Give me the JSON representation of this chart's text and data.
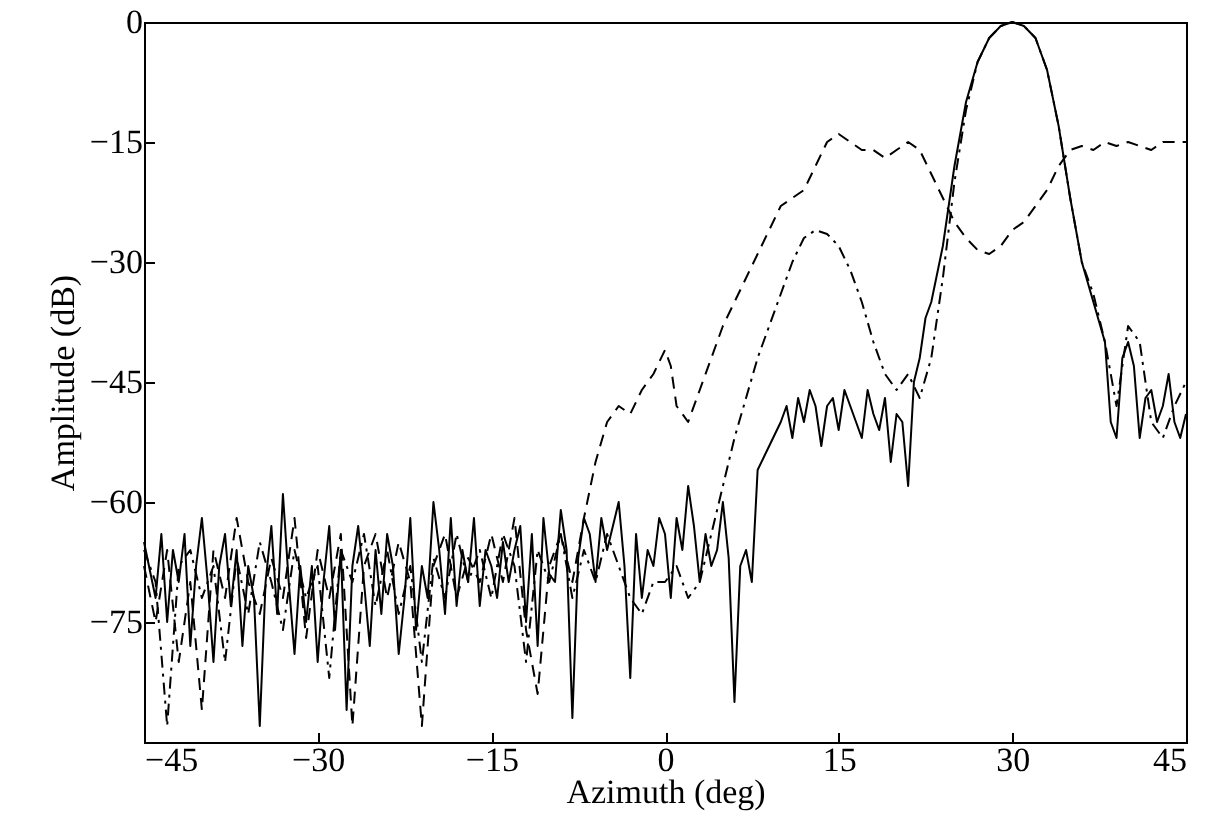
{
  "chart_data": {
    "type": "line",
    "xlabel": "Azimuth (deg)",
    "ylabel": "Amplitude (dB)",
    "xlim": [
      -45,
      45
    ],
    "xticks": [
      -45,
      -30,
      -15,
      0,
      15,
      30,
      45
    ],
    "ylim": [
      -90,
      0
    ],
    "yticks": [
      -75,
      -60,
      -45,
      -30,
      -15,
      0
    ],
    "grid": false,
    "marker": "none",
    "series": [
      {
        "color": "#000000",
        "line_style": "solid",
        "x": [
          -45,
          -44,
          -43.5,
          -43,
          -42.5,
          -42,
          -41.5,
          -41,
          -40.5,
          -40,
          -39.5,
          -39,
          -38.5,
          -38,
          -37.5,
          -37,
          -36.5,
          -36,
          -35.5,
          -35,
          -34.5,
          -34,
          -33.5,
          -33,
          -32.5,
          -32,
          -31.5,
          -31,
          -30.5,
          -30,
          -29.5,
          -29,
          -28.5,
          -28,
          -27.5,
          -27,
          -26.5,
          -26,
          -25.5,
          -25,
          -24.5,
          -24,
          -23.5,
          -23,
          -22.5,
          -22,
          -21.5,
          -21,
          -20.5,
          -20,
          -19.5,
          -19,
          -18.5,
          -18,
          -17.5,
          -17,
          -16.5,
          -16,
          -15.5,
          -15,
          -14.5,
          -14,
          -13.5,
          -13,
          -12.5,
          -12,
          -11.5,
          -11,
          -10.5,
          -10,
          -9.5,
          -9,
          -8.5,
          -8,
          -7.5,
          -7,
          -6.5,
          -6,
          -5.5,
          -5,
          -4,
          -3.5,
          -3,
          -2.5,
          -2,
          -1.5,
          -1,
          -0.5,
          0,
          0.5,
          1,
          1.5,
          2,
          2.5,
          3,
          3.5,
          4,
          4.5,
          5,
          5.5,
          6,
          6.5,
          7,
          7.5,
          8,
          9,
          10,
          10.5,
          11,
          11.5,
          12,
          12.5,
          13,
          13.5,
          14,
          14.5,
          15,
          15.5,
          16,
          17,
          17.5,
          18,
          18.5,
          19,
          19.5,
          20,
          20.5,
          21,
          21.5,
          22,
          22.5,
          23,
          24,
          25,
          26,
          27,
          28,
          29,
          30,
          31,
          32,
          33,
          34,
          35,
          36,
          37,
          38,
          38.5,
          39,
          39.5,
          40,
          40.5,
          41,
          41.5,
          42,
          42.5,
          43,
          43.5,
          44,
          44.5,
          45
        ],
        "values": [
          -65,
          -72,
          -64,
          -75,
          -66,
          -70,
          -64,
          -78,
          -68,
          -62,
          -70,
          -80,
          -68,
          -64,
          -73,
          -66,
          -78,
          -68,
          -72,
          -88,
          -70,
          -63,
          -74,
          -59,
          -70,
          -79,
          -68,
          -75,
          -68,
          -80,
          -70,
          -63,
          -76,
          -66,
          -86,
          -68,
          -63,
          -70,
          -78,
          -66,
          -74,
          -64,
          -68,
          -79,
          -72,
          -62,
          -76,
          -68,
          -72,
          -60,
          -66,
          -74,
          -62,
          -73,
          -66,
          -70,
          -62,
          -73,
          -66,
          -68,
          -72,
          -65,
          -70,
          -66,
          -63,
          -75,
          -64,
          -78,
          -62,
          -69,
          -70,
          -61,
          -66,
          -87,
          -67,
          -62,
          -64,
          -70,
          -62,
          -66,
          -60,
          -68,
          -82,
          -64,
          -72,
          -66,
          -68,
          -62,
          -64,
          -72,
          -62,
          -66,
          -58,
          -63,
          -70,
          -64,
          -68,
          -66,
          -60,
          -67,
          -85,
          -68,
          -66,
          -70,
          -56,
          -53,
          -50,
          -48,
          -52,
          -47,
          -50,
          -46,
          -48,
          -53,
          -48,
          -47,
          -51,
          -46,
          -48,
          -52,
          -46,
          -49,
          -51,
          -47,
          -55,
          -49,
          -50,
          -58,
          -45,
          -42,
          -37,
          -35,
          -28,
          -18,
          -10,
          -5,
          -2,
          -0.5,
          0,
          -0.5,
          -2,
          -6,
          -13,
          -22,
          -30,
          -35,
          -40,
          -50,
          -52,
          -42,
          -40,
          -43,
          -52,
          -47,
          -46,
          -50,
          -48,
          -44,
          -50,
          -52,
          -49
        ]
      },
      {
        "color": "#000000",
        "line_style": "dashed",
        "x": [
          -45,
          -44,
          -43,
          -42,
          -41,
          -40,
          -39,
          -38,
          -37,
          -36,
          -35,
          -34,
          -33,
          -32,
          -31,
          -30,
          -29,
          -28,
          -27,
          -26,
          -25,
          -24,
          -23,
          -22,
          -21,
          -20,
          -19,
          -18,
          -17,
          -16,
          -15,
          -14,
          -13,
          -12,
          -11,
          -10,
          -9,
          -8,
          -7,
          -6,
          -5,
          -4,
          -3,
          -2,
          -1,
          0,
          0.5,
          1,
          2,
          3,
          4,
          5,
          6,
          7,
          8,
          9,
          10,
          11,
          12,
          13,
          14,
          15,
          16,
          17,
          18,
          19,
          20,
          21,
          22,
          23,
          24,
          25,
          26,
          27,
          28,
          29,
          30,
          31,
          32,
          33,
          34,
          35,
          36,
          37,
          38,
          39,
          40,
          41,
          42,
          43,
          44,
          45
        ],
        "values": [
          -68,
          -75,
          -66,
          -80,
          -70,
          -86,
          -66,
          -72,
          -62,
          -70,
          -74,
          -67,
          -72,
          -62,
          -77,
          -66,
          -72,
          -64,
          -88,
          -68,
          -64,
          -72,
          -65,
          -70,
          -88,
          -68,
          -64,
          -72,
          -67,
          -70,
          -64,
          -70,
          -62,
          -76,
          -84,
          -68,
          -64,
          -70,
          -62,
          -55,
          -50,
          -48,
          -49,
          -46,
          -44,
          -41,
          -43,
          -48,
          -50,
          -46,
          -42,
          -38,
          -35,
          -32,
          -29,
          -26,
          -23,
          -22,
          -21,
          -18,
          -15,
          -14,
          -15,
          -16,
          -16,
          -17,
          -16,
          -15,
          -16,
          -19,
          -22,
          -25,
          -27,
          -28.5,
          -29,
          -28,
          -26,
          -25,
          -23,
          -21,
          -18,
          -16,
          -15.5,
          -16,
          -15,
          -15.5,
          -15,
          -15.5,
          -16,
          -15,
          -15,
          -15
        ]
      },
      {
        "color": "#000000",
        "line_style": "dashdot",
        "x": [
          -45,
          -44,
          -43,
          -42,
          -41,
          -40,
          -39,
          -38,
          -37,
          -36,
          -35,
          -34,
          -33,
          -32,
          -31,
          -30,
          -29,
          -28,
          -27,
          -26,
          -25,
          -24,
          -23,
          -22,
          -21,
          -20,
          -19,
          -18,
          -17,
          -16,
          -15,
          -14,
          -13,
          -12,
          -11,
          -10,
          -9,
          -8,
          -7,
          -6,
          -5,
          -4,
          -3,
          -2,
          -1,
          0,
          1,
          2,
          3,
          4,
          5,
          6,
          7,
          8,
          9,
          10,
          11,
          12,
          13,
          14,
          15,
          16,
          17,
          18,
          19,
          20,
          21,
          22,
          23,
          24,
          25,
          26,
          27,
          28,
          29,
          30,
          31,
          32,
          33,
          34,
          35,
          36,
          37,
          38,
          39,
          40,
          41,
          42,
          43,
          44,
          45
        ],
        "values": [
          -66,
          -70,
          -88,
          -68,
          -66,
          -72,
          -68,
          -80,
          -67,
          -74,
          -65,
          -70,
          -76,
          -66,
          -72,
          -68,
          -82,
          -66,
          -70,
          -64,
          -73,
          -66,
          -74,
          -68,
          -80,
          -67,
          -72,
          -64,
          -70,
          -66,
          -72,
          -64,
          -68,
          -80,
          -66,
          -70,
          -64,
          -72,
          -66,
          -70,
          -64,
          -68,
          -72,
          -74,
          -70,
          -70,
          -68,
          -72,
          -70,
          -64,
          -58,
          -52,
          -47,
          -42,
          -38,
          -34,
          -30,
          -27,
          -26,
          -26.5,
          -28,
          -31,
          -35,
          -40,
          -44,
          -46,
          -44,
          -47,
          -42,
          -32,
          -20,
          -11,
          -5,
          -2,
          -0.5,
          0,
          -0.5,
          -2,
          -6,
          -13,
          -22,
          -30,
          -34,
          -40,
          -48,
          -38,
          -40,
          -50,
          -52,
          -48,
          -45
        ]
      }
    ]
  }
}
